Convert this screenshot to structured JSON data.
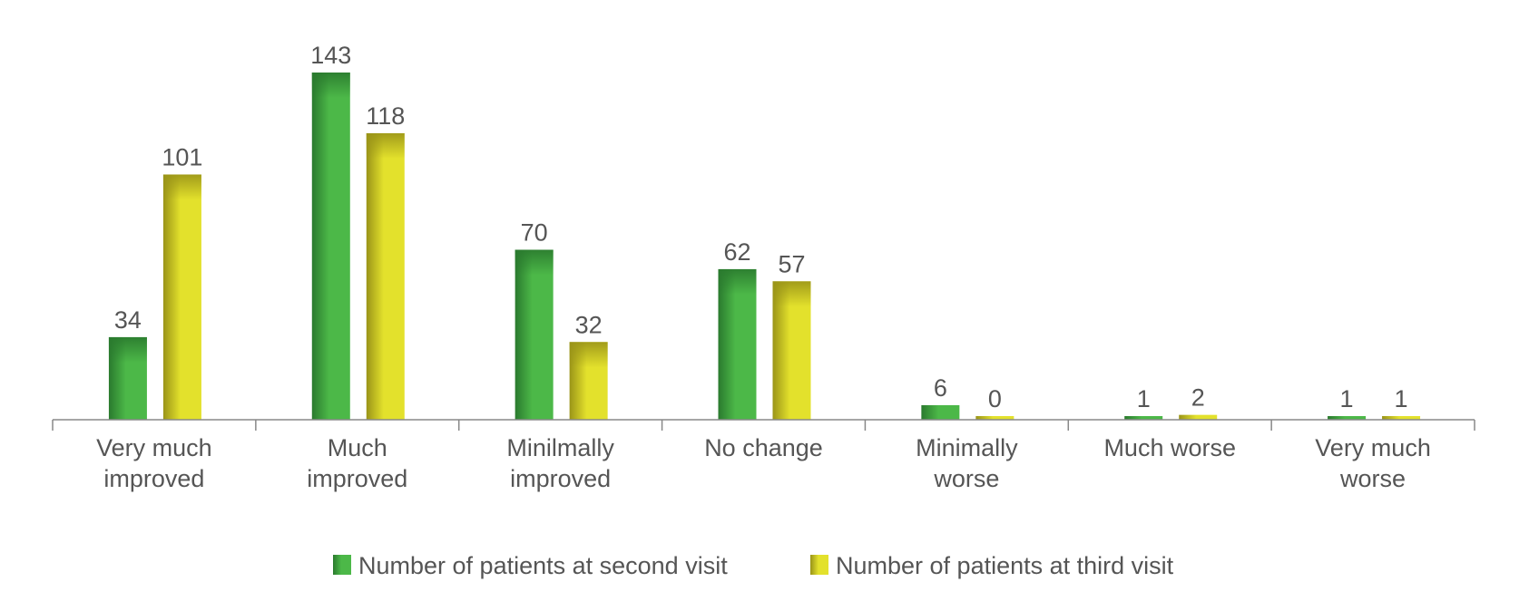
{
  "chart_data": {
    "type": "bar",
    "categories": [
      [
        "Very much",
        "improved"
      ],
      [
        "Much",
        "improved"
      ],
      [
        "Minilmally",
        "improved"
      ],
      [
        "No change"
      ],
      [
        "Minimally",
        "worse"
      ],
      [
        "Much worse"
      ],
      [
        "Very much",
        "worse"
      ]
    ],
    "series": [
      {
        "name": "Number of patients at second visit",
        "values": [
          34,
          143,
          70,
          62,
          6,
          1,
          1
        ],
        "labels": [
          "34",
          "143",
          "70",
          "62",
          "6",
          "1",
          "1"
        ],
        "color": "#4cb848",
        "color_dark": "#2a7a2e"
      },
      {
        "name": "Number of patients at third visit",
        "values": [
          101,
          118,
          32,
          57,
          0,
          2,
          1
        ],
        "labels": [
          "101",
          "118",
          "32",
          "57",
          "0",
          "2",
          "1"
        ],
        "color": "#e3e12c",
        "color_dark": "#9a9418"
      }
    ],
    "ylim": [
      0,
      143
    ],
    "grid": false,
    "legend_position": "bottom-center",
    "axis_color": "#888888",
    "text_color": "#555555"
  }
}
